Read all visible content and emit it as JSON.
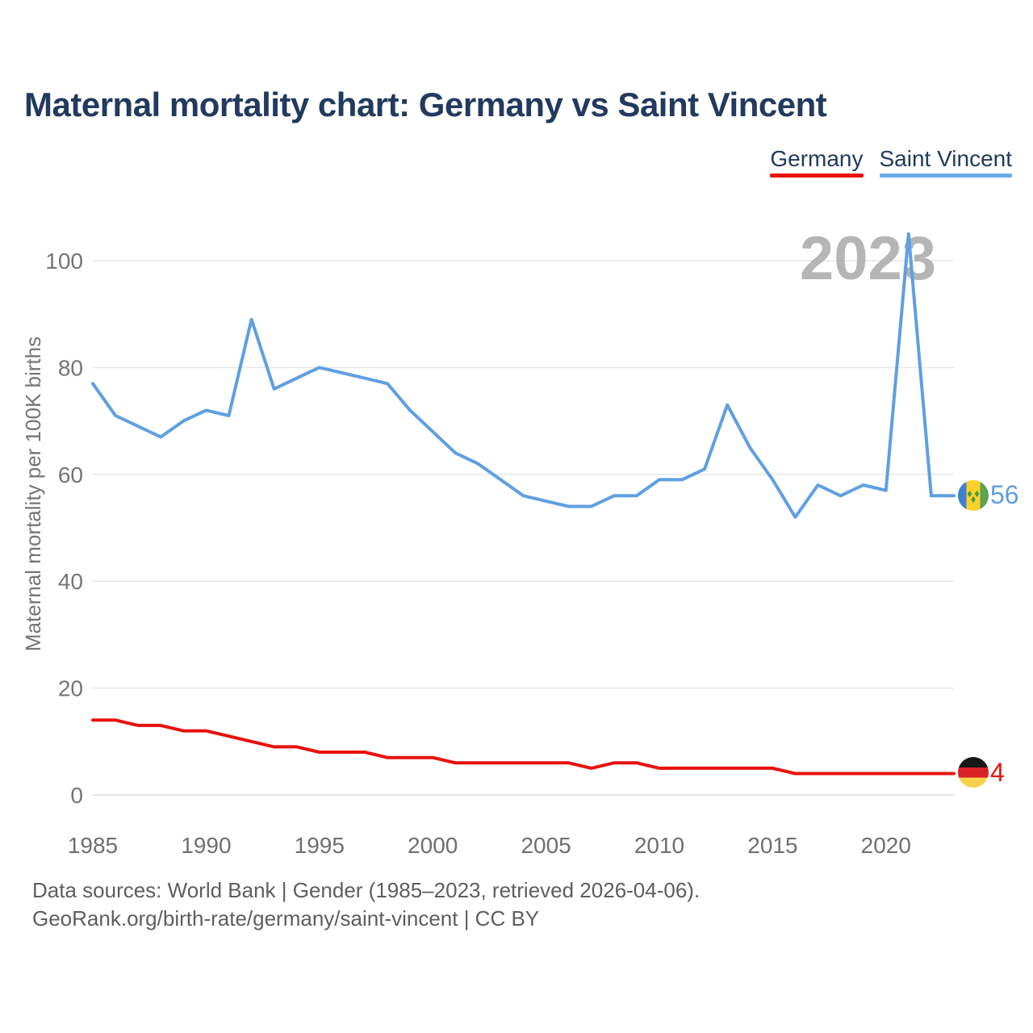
{
  "title": "Maternal mortality chart: Germany vs Saint Vincent",
  "watermark": "2023",
  "legend": {
    "items": [
      {
        "label": "Germany",
        "color": "#e8110e"
      },
      {
        "label": "Saint Vincent",
        "color": "#6babea"
      }
    ]
  },
  "chart_data": {
    "type": "line",
    "title": "Maternal mortality chart: Germany vs Saint Vincent",
    "xlabel": "",
    "ylabel": "Maternal mortality per 100K births",
    "x": [
      1985,
      1986,
      1987,
      1988,
      1989,
      1990,
      1991,
      1992,
      1993,
      1994,
      1995,
      1996,
      1997,
      1998,
      1999,
      2000,
      2001,
      2002,
      2003,
      2004,
      2005,
      2006,
      2007,
      2008,
      2009,
      2010,
      2011,
      2012,
      2013,
      2014,
      2015,
      2016,
      2017,
      2018,
      2019,
      2020,
      2021,
      2022,
      2023
    ],
    "xticks": [
      1985,
      1990,
      1995,
      2000,
      2005,
      2010,
      2015,
      2020
    ],
    "yticks": [
      0,
      20,
      40,
      60,
      80,
      100
    ],
    "ylim": [
      0,
      105
    ],
    "grid": true,
    "legend_position": "top-right",
    "series": [
      {
        "name": "Saint Vincent",
        "color": "#5f9fe2",
        "end_label": "56",
        "end_flag": "saint-vincent",
        "values": [
          77,
          71,
          69,
          67,
          70,
          72,
          71,
          89,
          76,
          78,
          80,
          79,
          78,
          77,
          72,
          68,
          64,
          62,
          59,
          56,
          55,
          54,
          54,
          56,
          56,
          59,
          59,
          61,
          73,
          65,
          59,
          52,
          58,
          56,
          58,
          57,
          105,
          56,
          56
        ]
      },
      {
        "name": "Germany",
        "color": "#e8110e",
        "end_label": "4",
        "end_flag": "germany",
        "values": [
          14,
          14,
          13,
          13,
          12,
          12,
          11,
          10,
          9,
          9,
          8,
          8,
          8,
          7,
          7,
          7,
          6,
          6,
          6,
          6,
          6,
          6,
          5,
          6,
          6,
          5,
          5,
          5,
          5,
          5,
          5,
          4,
          4,
          4,
          4,
          4,
          4,
          4,
          4
        ]
      }
    ]
  },
  "footer": {
    "line1": "Data sources: World Bank | Gender (1985–2023, retrieved 2026-04-06).",
    "line2": "GeoRank.org/birth-rate/germany/saint-vincent | CC BY"
  }
}
